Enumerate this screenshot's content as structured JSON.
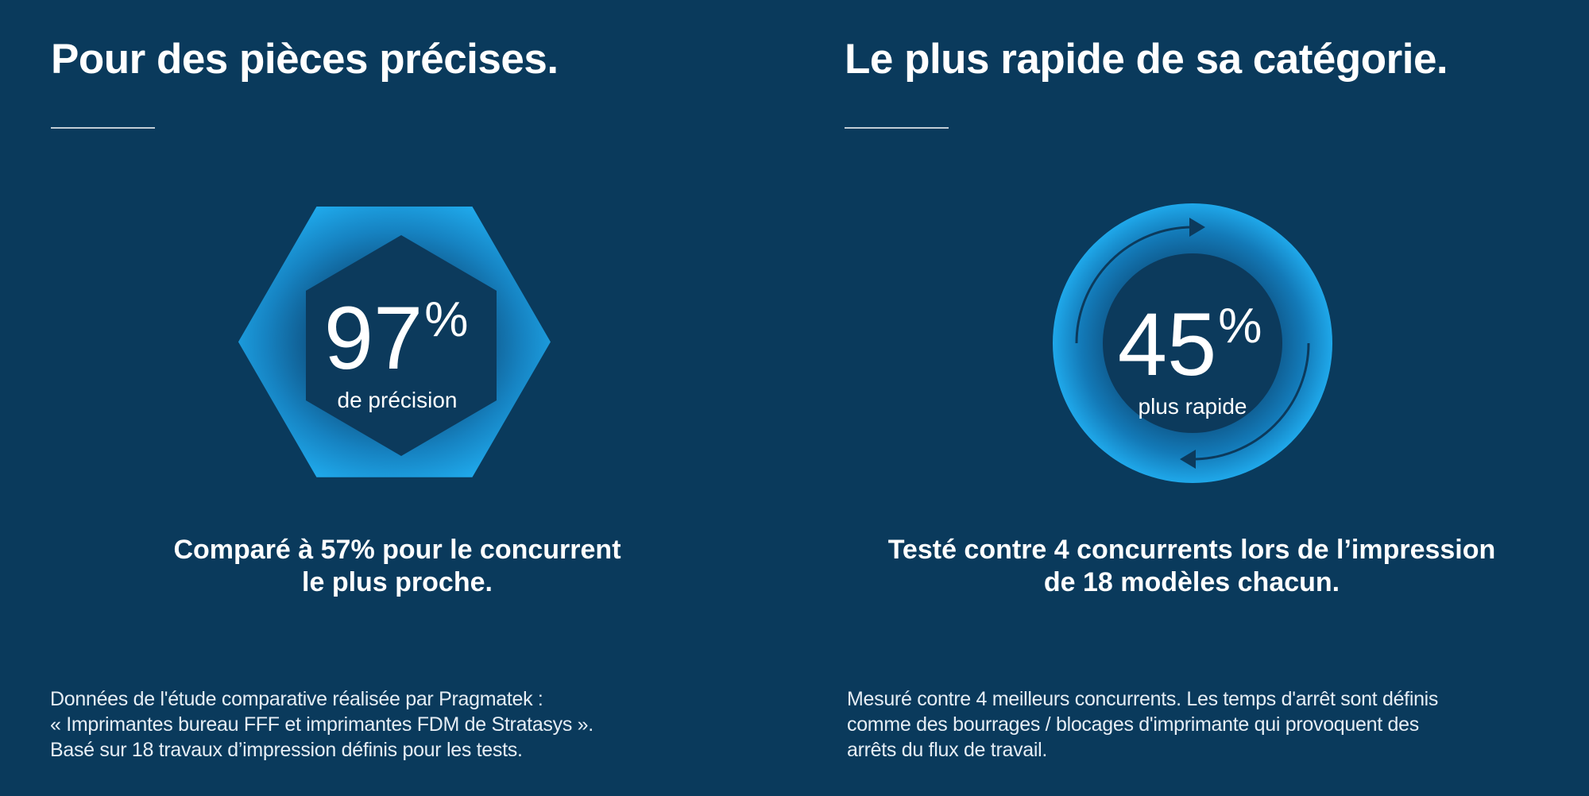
{
  "colors": {
    "background": "#0a3a5c",
    "accent": "#1da6e8",
    "inner": "#0c3a5c"
  },
  "left": {
    "title": "Pour des pièces précises.",
    "stat_value": "97",
    "stat_unit": "%",
    "stat_label": "de précision",
    "subhead_lines": [
      "Comparé à 57% pour le concurrent",
      "le plus proche."
    ],
    "footnote_lines": [
      "Données de l'étude comparative réalisée par Pragmatek :",
      "« Imprimantes bureau FFF et imprimantes FDM de Stratasys ».",
      "Basé sur 18 travaux d’impression définis pour les tests."
    ],
    "badge_icon": "hexagon-icon"
  },
  "right": {
    "title": "Le plus rapide de sa catégorie.",
    "stat_value": "45",
    "stat_unit": "%",
    "stat_label": "plus rapide",
    "subhead_lines": [
      "Testé contre 4 concurrents lors de l’impression",
      "de 18 modèles chacun."
    ],
    "footnote_lines": [
      "Mesuré contre 4 meilleurs concurrents. Les temps d'arrêt sont définis",
      "comme des bourrages / blocages d'imprimante qui provoquent des",
      "arrêts du flux de travail."
    ],
    "badge_icon": "circular-arrows-icon"
  }
}
